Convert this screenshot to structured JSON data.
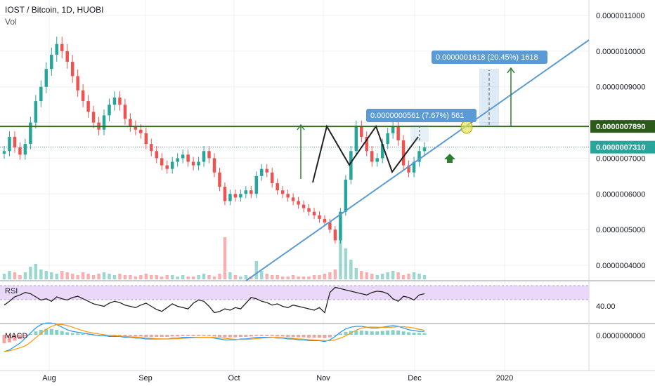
{
  "header": {
    "symbol_line": "IOST / Bitcoin, 1D, HUOBI",
    "vol_label": "Vol"
  },
  "colors": {
    "up": "#26a69a",
    "down": "#ef5350",
    "resistance": "#386b22",
    "trendline": "#5b9bd5",
    "price_badge": "#5b9bd5",
    "rsi_band": "#e9d8f7",
    "macd_line": "#2196f3",
    "signal_line": "#ff9800",
    "pattern": "#222222"
  },
  "chart_data": [
    {
      "type": "candlestick",
      "title": "IOST / Bitcoin, 1D, HUOBI",
      "x_ticks": [
        "Aug",
        "Sep",
        "Oct",
        "Nov",
        "Dec",
        "2020"
      ],
      "y_ticks": [
        "0.0000011000",
        "0.0000010000",
        "0.0000009000",
        "0.0000008000",
        "0.0000007000",
        "0.0000006000",
        "0.0000005000",
        "0.0000004000"
      ],
      "ylim": [
        3.7e-07,
        1.14e-06
      ],
      "close_series": [
        7.2e-07,
        7.6e-07,
        7.3e-07,
        7.1e-07,
        7.4e-07,
        8e-07,
        8.6e-07,
        9e-07,
        9.5e-07,
        9.9e-07,
        1.02e-06,
        1e-06,
        9.7e-07,
        9.3e-07,
        8.9e-07,
        8.6e-07,
        8.3e-07,
        8e-07,
        7.8e-07,
        8.2e-07,
        8.5e-07,
        8.7e-07,
        8.5e-07,
        8.1e-07,
        7.9e-07,
        7.8e-07,
        7.7e-07,
        7.4e-07,
        7.2e-07,
        7e-07,
        6.8e-07,
        6.7e-07,
        6.9e-07,
        7e-07,
        7.1e-07,
        6.9e-07,
        6.8e-07,
        6.9e-07,
        7.2e-07,
        7e-07,
        6.6e-07,
        6.2e-07,
        5.8e-07,
        6e-07,
        5.9e-07,
        6e-07,
        6.1e-07,
        6e-07,
        6.5e-07,
        6.7e-07,
        6.6e-07,
        6.3e-07,
        6.1e-07,
        6e-07,
        5.9e-07,
        5.8e-07,
        5.7e-07,
        5.6e-07,
        5.5e-07,
        5.4e-07,
        5.3e-07,
        5.2e-07,
        5e-07,
        4.7e-07,
        5.5e-07,
        6.4e-07,
        7.2e-07,
        7.9e-07,
        7.6e-07,
        7.2e-07,
        6.9e-07,
        7e-07,
        7.4e-07,
        7.7e-07,
        7.9e-07,
        7.5e-07,
        6.8e-07,
        6.6e-07,
        6.9e-07,
        7.2e-07,
        7.3e-07
      ],
      "vol_series": [
        4,
        6,
        5,
        3,
        5,
        9,
        11,
        7,
        6,
        5,
        4,
        6,
        5,
        4,
        3,
        5,
        4,
        3,
        4,
        5,
        4,
        3,
        4,
        3,
        3,
        2,
        3,
        4,
        3,
        3,
        2,
        3,
        3,
        2,
        3,
        2,
        2,
        3,
        4,
        3,
        2,
        4,
        30,
        5,
        3,
        2,
        3,
        2,
        13,
        6,
        4,
        3,
        3,
        2,
        2,
        3,
        2,
        2,
        2,
        3,
        3,
        4,
        5,
        7,
        40,
        22,
        14,
        8,
        6,
        5,
        4,
        3,
        4,
        5,
        6,
        5,
        3,
        4,
        5,
        4,
        3
      ],
      "rsi_series": [
        42,
        48,
        55,
        58,
        62,
        60,
        55,
        50,
        52,
        48,
        55,
        52,
        50,
        54,
        56,
        52,
        48,
        44,
        42,
        40,
        45,
        48,
        46,
        42,
        40,
        38,
        42,
        45,
        40,
        35,
        32,
        38,
        44,
        40,
        38,
        36,
        45,
        50,
        48,
        40,
        30,
        32,
        36,
        34,
        38,
        36,
        45,
        54,
        52,
        48,
        46,
        42,
        44,
        40,
        38,
        42,
        40,
        38,
        36,
        34,
        38,
        30,
        62,
        70,
        68,
        66,
        64,
        62,
        60,
        58,
        62,
        64,
        63,
        60,
        52,
        48,
        56,
        54,
        50,
        58,
        60
      ],
      "macd_series": [
        -20,
        -18,
        -14,
        -10,
        -4,
        2,
        8,
        12,
        14,
        14,
        12,
        9,
        6,
        4,
        3,
        2,
        1,
        0,
        -1,
        -1,
        -2,
        -2,
        -2,
        -3,
        -3,
        -4,
        -4,
        -5,
        -5,
        -5,
        -5,
        -5,
        -4,
        -4,
        -3,
        -3,
        -3,
        -3,
        -3,
        -3,
        -4,
        -5,
        -6,
        -6,
        -6,
        -5,
        -5,
        -4,
        -3,
        -3,
        -3,
        -3,
        -4,
        -4,
        -5,
        -5,
        -6,
        -6,
        -7,
        -7,
        -7,
        -8,
        -6,
        -2,
        3,
        7,
        9,
        10,
        10,
        9,
        8,
        8,
        9,
        10,
        11,
        10,
        8,
        6,
        5,
        4,
        4
      ],
      "current_price": "0.0000007310",
      "resistance_price": "0.0000007890",
      "measurements": [
        {
          "label": "0.0000000561 (7.67%) 561",
          "value": 5.61e-08,
          "percent": 7.67,
          "ticks": 561
        },
        {
          "label": "0.0000001618 (20.45%) 1618",
          "value": 1.618e-07,
          "percent": 20.45,
          "ticks": 1618
        }
      ]
    },
    {
      "type": "line",
      "title": "RSI",
      "y_ticks": [
        "40.00"
      ]
    },
    {
      "type": "bar",
      "title": "MACD",
      "y_ticks": [
        "0.0000000000"
      ]
    }
  ]
}
